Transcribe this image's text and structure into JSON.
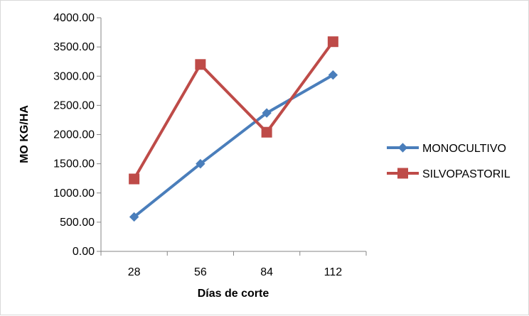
{
  "chart_data": {
    "type": "line",
    "title": "",
    "xlabel": "Días de corte",
    "ylabel": "MO KG/HA",
    "categories": [
      "28",
      "56",
      "84",
      "112"
    ],
    "ylim": [
      0,
      4000
    ],
    "ytick_labels": [
      "0.00",
      "500.00",
      "1000.00",
      "1500.00",
      "2000.00",
      "2500.00",
      "3000.00",
      "3500.00",
      "4000.00"
    ],
    "grid": false,
    "legend_position": "right",
    "series": [
      {
        "name": "MONOCULTIVO",
        "values": [
          590,
          1500,
          2370,
          3020
        ],
        "color": "#4a7ebb",
        "marker": "diamond"
      },
      {
        "name": "SILVOPASTORIL",
        "values": [
          1240,
          3200,
          2040,
          3590
        ],
        "color": "#be4b48",
        "marker": "square"
      }
    ]
  }
}
